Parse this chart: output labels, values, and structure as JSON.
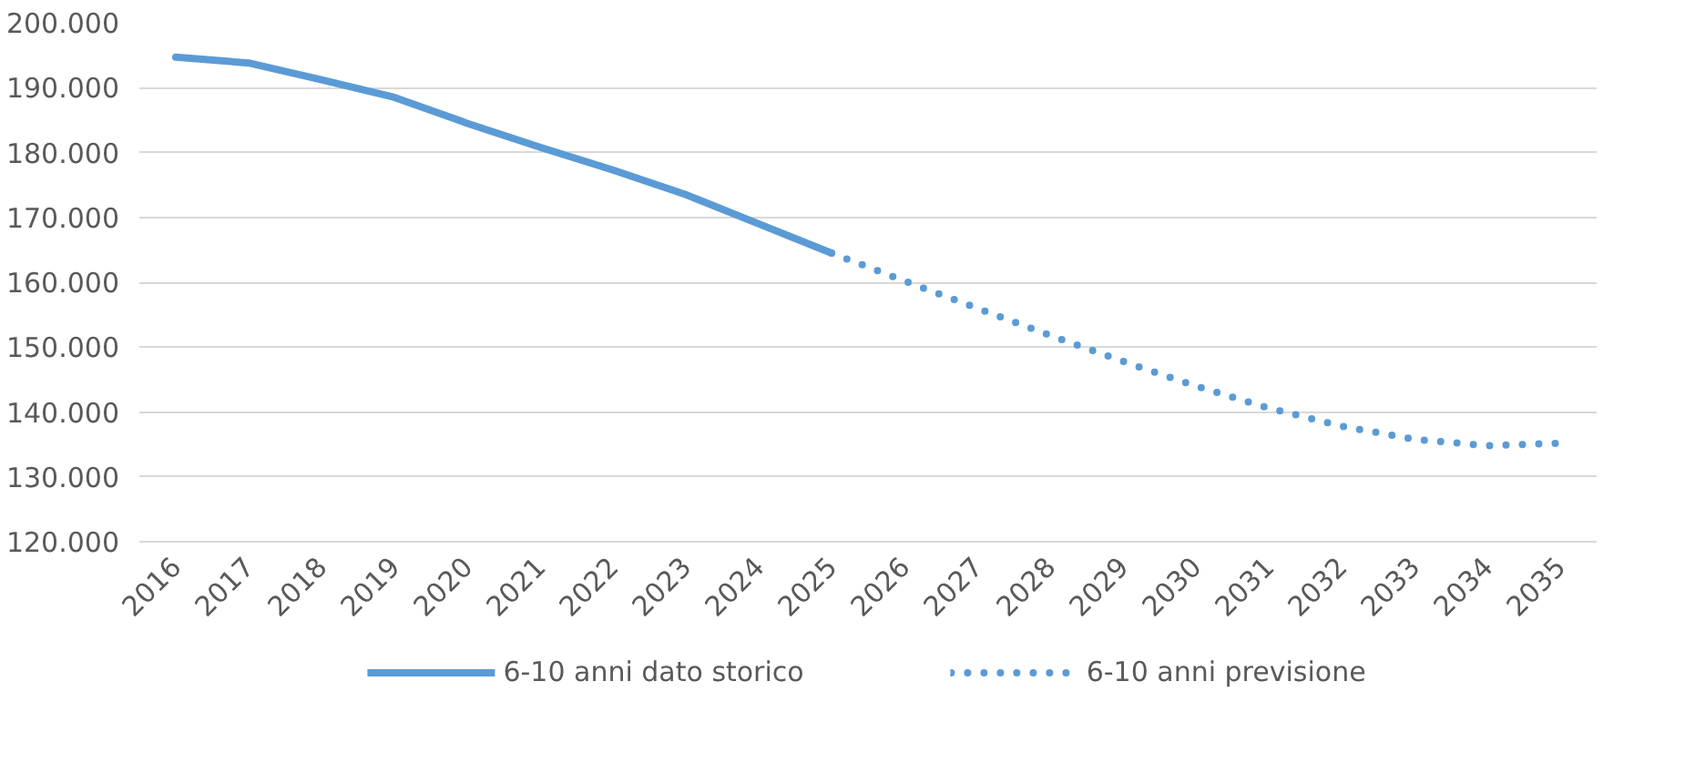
{
  "chart_data": {
    "type": "line",
    "categories": [
      "2016",
      "2017",
      "2018",
      "2019",
      "2020",
      "2021",
      "2022",
      "2023",
      "2024",
      "2025",
      "2026",
      "2027",
      "2028",
      "2029",
      "2030",
      "2031",
      "2032",
      "2033",
      "2034",
      "2035"
    ],
    "series": [
      {
        "name": "6-10 anni dato storico",
        "color": "#5b9bd5",
        "line_style": "solid",
        "values": [
          194700,
          193800,
          191200,
          188500,
          184500,
          180800,
          177300,
          173500,
          169000,
          164500,
          null,
          null,
          null,
          null,
          null,
          null,
          null,
          null,
          null,
          null
        ]
      },
      {
        "name": "6-10 anni previsione",
        "color": "#5b9bd5",
        "line_style": "dotted",
        "values": [
          null,
          null,
          null,
          null,
          null,
          null,
          null,
          null,
          null,
          164500,
          160200,
          156000,
          151800,
          147800,
          144000,
          140600,
          137800,
          135800,
          134800,
          135200
        ]
      }
    ],
    "ylim": [
      120000,
      200000
    ],
    "yticks": [
      {
        "value": 120000,
        "label": "120.000"
      },
      {
        "value": 130000,
        "label": "130.000"
      },
      {
        "value": 140000,
        "label": "140.000"
      },
      {
        "value": 150000,
        "label": "150.000"
      },
      {
        "value": 160000,
        "label": "160.000"
      },
      {
        "value": 170000,
        "label": "170.000"
      },
      {
        "value": 180000,
        "label": "180.000"
      },
      {
        "value": 190000,
        "label": "190.000"
      },
      {
        "value": 200000,
        "label": "200.000"
      }
    ],
    "grid": "y",
    "legend": "bottom",
    "marker": "none"
  }
}
